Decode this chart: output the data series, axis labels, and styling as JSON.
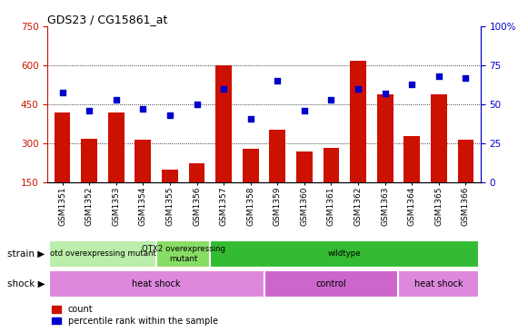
{
  "title": "GDS23 / CG15861_at",
  "samples": [
    "GSM1351",
    "GSM1352",
    "GSM1353",
    "GSM1354",
    "GSM1355",
    "GSM1356",
    "GSM1357",
    "GSM1358",
    "GSM1359",
    "GSM1360",
    "GSM1361",
    "GSM1362",
    "GSM1363",
    "GSM1364",
    "GSM1365",
    "GSM1366"
  ],
  "counts": [
    420,
    320,
    420,
    315,
    200,
    225,
    600,
    280,
    355,
    270,
    285,
    620,
    490,
    330,
    490,
    315
  ],
  "percentile": [
    58,
    46,
    53,
    47,
    43,
    50,
    60,
    41,
    65,
    46,
    53,
    60,
    57,
    63,
    68,
    67
  ],
  "ylim_left": [
    150,
    750
  ],
  "ylim_right": [
    0,
    100
  ],
  "yticks_left": [
    150,
    300,
    450,
    600,
    750
  ],
  "yticks_right": [
    0,
    25,
    50,
    75,
    100
  ],
  "bar_color": "#cc1100",
  "dot_color": "#0000cc",
  "strain_groups": [
    {
      "label": "otd overexpressing mutant",
      "start": 0,
      "end": 4,
      "color": "#bbeeaa"
    },
    {
      "label": "OTX2 overexpressing\nmutant",
      "start": 4,
      "end": 6,
      "color": "#88dd66"
    },
    {
      "label": "wildtype",
      "start": 6,
      "end": 16,
      "color": "#33bb33"
    }
  ],
  "shock_groups": [
    {
      "label": "heat shock",
      "start": 0,
      "end": 8,
      "color": "#dd88dd"
    },
    {
      "label": "control",
      "start": 8,
      "end": 13,
      "color": "#cc66cc"
    },
    {
      "label": "heat shock",
      "start": 13,
      "end": 16,
      "color": "#dd88dd"
    }
  ],
  "legend_items": [
    {
      "label": "count",
      "color": "#cc1100"
    },
    {
      "label": "percentile rank within the sample",
      "color": "#0000cc"
    }
  ]
}
